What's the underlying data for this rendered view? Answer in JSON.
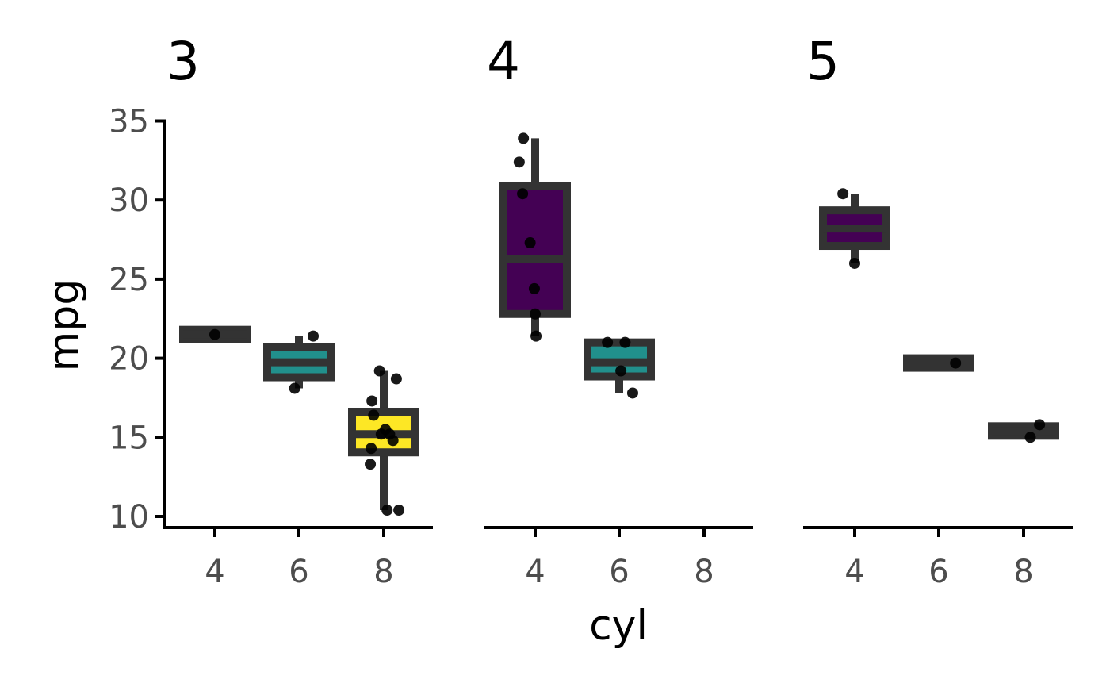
{
  "chart_data": {
    "type": "boxplot",
    "facet_variable": "",
    "facets": [
      "3",
      "4",
      "5"
    ],
    "xlabel": "cyl",
    "ylabel": "mpg",
    "x_ticks": [
      "4",
      "6",
      "8"
    ],
    "y_ticks": [
      "10",
      "15",
      "20",
      "25",
      "30",
      "35"
    ],
    "ylim": [
      9.3,
      35
    ],
    "fill_colors": {
      "4": "#440154",
      "6": "#21908c",
      "8": "#fde725"
    },
    "box_outline_color": "#333333",
    "point_color": "#000000",
    "panels": [
      {
        "facet": "3",
        "boxes": [
          {
            "x": "4",
            "min": 21.5,
            "q1": 21.5,
            "median": 21.5,
            "q3": 21.5,
            "max": 21.5
          },
          {
            "x": "6",
            "min": 18.1,
            "q1": 18.8,
            "median": 19.75,
            "q3": 20.7,
            "max": 21.4
          },
          {
            "x": "8",
            "min": 10.4,
            "q1": 14.05,
            "median": 15.2,
            "q3": 16.62,
            "max": 19.2
          }
        ],
        "points": [
          {
            "x": "4",
            "jitter": 0.0,
            "y": 21.5
          },
          {
            "x": "6",
            "jitter": -0.05,
            "y": 18.1
          },
          {
            "x": "6",
            "jitter": 0.17,
            "y": 21.4
          },
          {
            "x": "8",
            "jitter": -0.05,
            "y": 19.2
          },
          {
            "x": "8",
            "jitter": 0.15,
            "y": 18.7
          },
          {
            "x": "8",
            "jitter": -0.14,
            "y": 17.3
          },
          {
            "x": "8",
            "jitter": -0.12,
            "y": 16.4
          },
          {
            "x": "8",
            "jitter": 0.02,
            "y": 15.5
          },
          {
            "x": "8",
            "jitter": -0.03,
            "y": 15.2
          },
          {
            "x": "8",
            "jitter": 0.07,
            "y": 15.2
          },
          {
            "x": "8",
            "jitter": 0.11,
            "y": 14.8
          },
          {
            "x": "8",
            "jitter": -0.15,
            "y": 14.3
          },
          {
            "x": "8",
            "jitter": -0.16,
            "y": 13.3
          },
          {
            "x": "8",
            "jitter": 0.04,
            "y": 10.4
          },
          {
            "x": "8",
            "jitter": 0.18,
            "y": 10.4
          }
        ]
      },
      {
        "facet": "4",
        "boxes": [
          {
            "x": "4",
            "min": 21.4,
            "q1": 22.8,
            "median": 26.3,
            "q3": 30.9,
            "max": 33.9
          },
          {
            "x": "6",
            "min": 17.8,
            "q1": 18.85,
            "median": 19.75,
            "q3": 21.0,
            "max": 21.0
          }
        ],
        "points": [
          {
            "x": "4",
            "jitter": -0.14,
            "y": 33.9
          },
          {
            "x": "4",
            "jitter": -0.19,
            "y": 32.4
          },
          {
            "x": "4",
            "jitter": -0.15,
            "y": 30.4
          },
          {
            "x": "4",
            "jitter": -0.06,
            "y": 27.3
          },
          {
            "x": "4",
            "jitter": -0.01,
            "y": 24.4
          },
          {
            "x": "4",
            "jitter": 0.0,
            "y": 22.8
          },
          {
            "x": "4",
            "jitter": 0.01,
            "y": 21.4
          },
          {
            "x": "6",
            "jitter": -0.14,
            "y": 21.0
          },
          {
            "x": "6",
            "jitter": 0.07,
            "y": 21.0
          },
          {
            "x": "6",
            "jitter": 0.02,
            "y": 19.2
          },
          {
            "x": "6",
            "jitter": 0.16,
            "y": 17.8
          }
        ]
      },
      {
        "facet": "5",
        "boxes": [
          {
            "x": "4",
            "min": 26.0,
            "q1": 27.1,
            "median": 28.2,
            "q3": 29.35,
            "max": 30.4
          },
          {
            "x": "6",
            "min": 19.7,
            "q1": 19.7,
            "median": 19.7,
            "q3": 19.7,
            "max": 19.7
          },
          {
            "x": "8",
            "min": 15.0,
            "q1": 15.2,
            "median": 15.4,
            "q3": 15.6,
            "max": 15.8
          }
        ],
        "points": [
          {
            "x": "4",
            "jitter": -0.14,
            "y": 30.4
          },
          {
            "x": "4",
            "jitter": 0.0,
            "y": 26.0
          },
          {
            "x": "6",
            "jitter": 0.2,
            "y": 19.7
          },
          {
            "x": "8",
            "jitter": 0.08,
            "y": 15.0
          },
          {
            "x": "8",
            "jitter": 0.19,
            "y": 15.8
          }
        ]
      }
    ]
  }
}
